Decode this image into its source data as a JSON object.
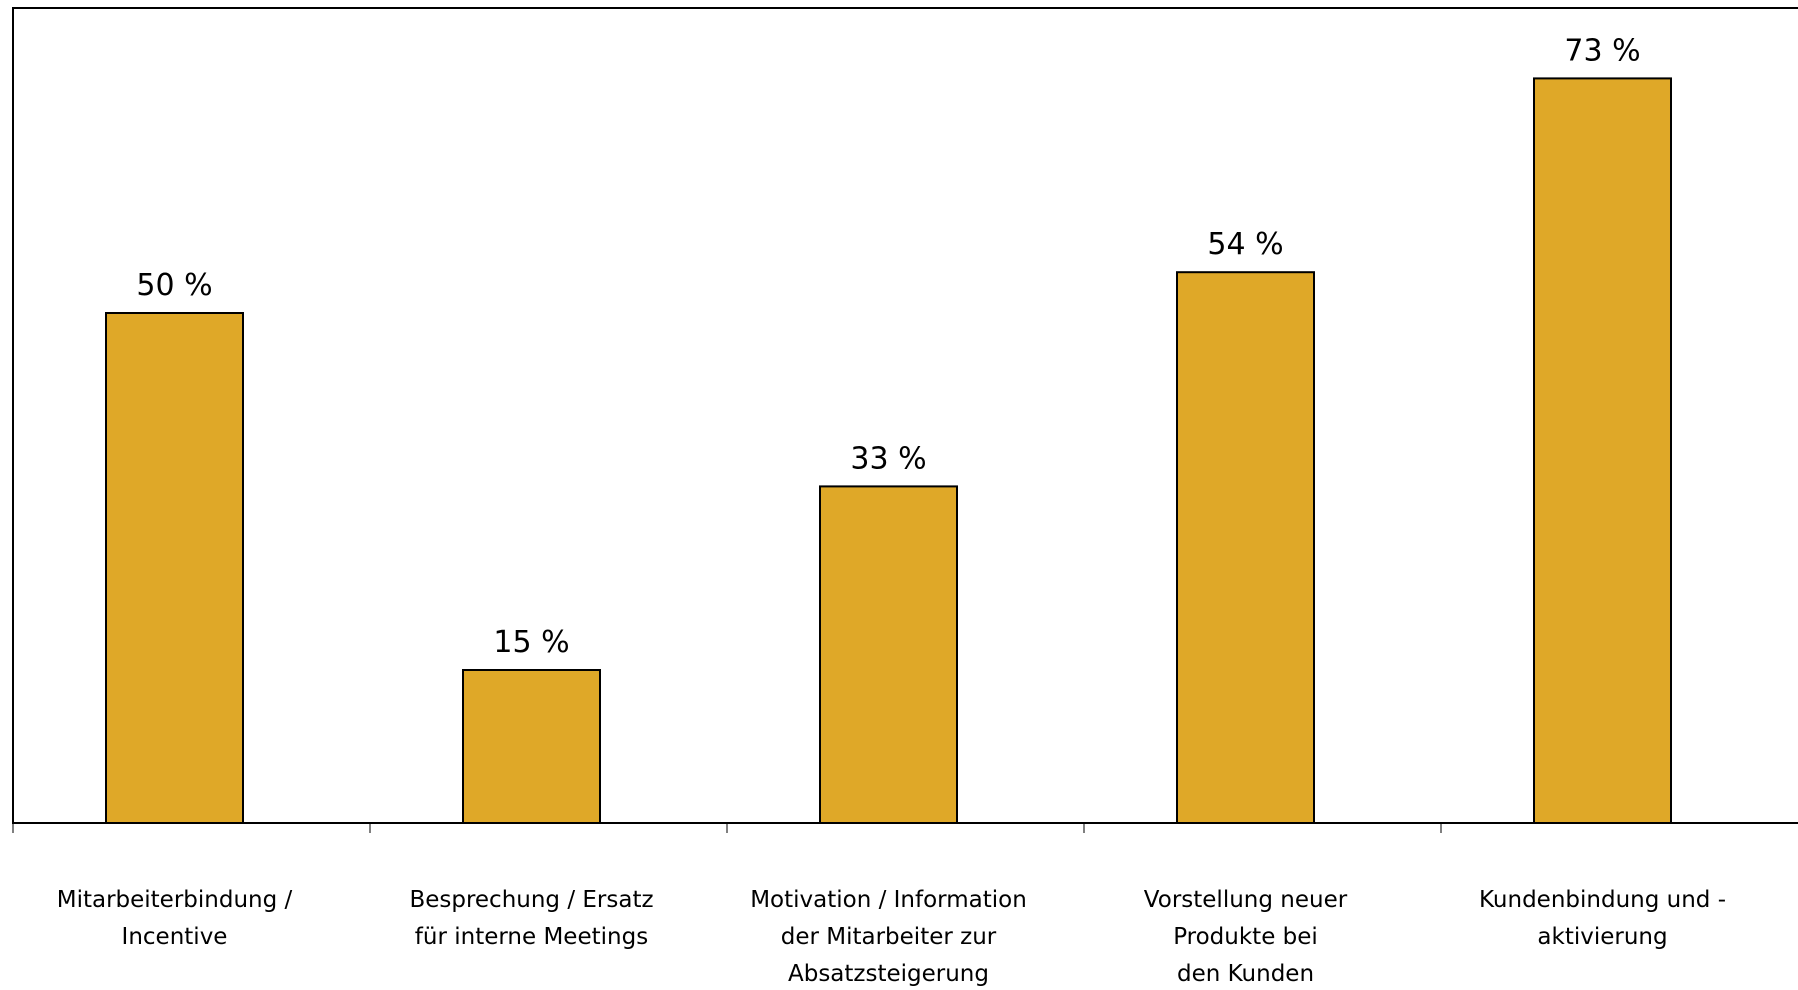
{
  "chart_data": {
    "type": "bar",
    "categories": [
      [
        "Mitarbeiterbindung /",
        "Incentive"
      ],
      [
        "Besprechung / Ersatz",
        "für interne Meetings"
      ],
      [
        "Motivation / Information",
        "der Mitarbeiter zur",
        "Absatzsteigerung"
      ],
      [
        "Vorstellung neuer",
        "Produkte bei",
        "den Kunden"
      ],
      [
        "Kundenbindung und -",
        "aktivierung"
      ]
    ],
    "values": [
      50,
      15,
      33,
      54,
      73
    ],
    "value_labels": [
      "50 %",
      "15 %",
      "33 %",
      "54 %",
      "73 %"
    ],
    "unit": "%",
    "title": "",
    "xlabel": "",
    "ylabel": "",
    "ylim": [
      0,
      80
    ],
    "grid": false,
    "legend": "none",
    "bar_color": "#DFA828",
    "bar_edge_color": "#000000"
  }
}
